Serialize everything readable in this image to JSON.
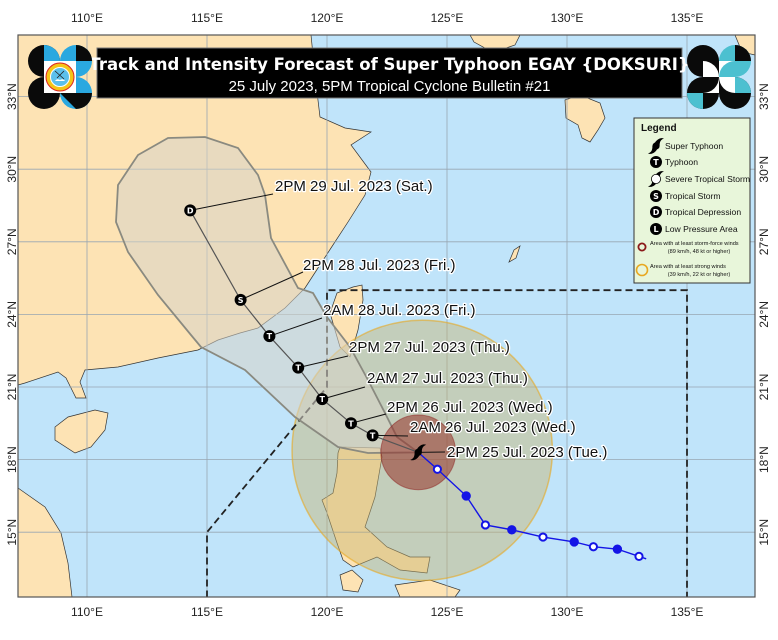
{
  "title": "Track and Intensity Forecast of Super Typhoon EGAY {DOKSURI}",
  "subtitle": "25 July 2023, 5PM Tropical Cyclone Bulletin #21",
  "axes": {
    "lon_labels": [
      "110°E",
      "115°E",
      "120°E",
      "125°E",
      "130°E",
      "135°E"
    ],
    "lat_labels": [
      "33°N",
      "30°N",
      "27°N",
      "24°N",
      "21°N",
      "18°N",
      "15°N"
    ]
  },
  "legend": {
    "title": "Legend",
    "items": [
      {
        "symbol": "super-typhoon",
        "label": "Super Typhoon"
      },
      {
        "symbol": "T",
        "label": "Typhoon"
      },
      {
        "symbol": "severe-tropical-storm",
        "label": "Severe Tropical Storm"
      },
      {
        "symbol": "S",
        "label": "Tropical Storm"
      },
      {
        "symbol": "D",
        "label": "Tropical Depression"
      },
      {
        "symbol": "L",
        "label": "Low Pressure Area"
      }
    ],
    "wind_areas": [
      {
        "line1": "Area with at least storm-force winds",
        "line2": "(89 km/h, 48 kt or higher)",
        "color": "#8b1a1a"
      },
      {
        "line1": "Area with at least strong winds",
        "line2": "(39 km/h, 22 kt or higher)",
        "color": "#e8a820"
      }
    ]
  },
  "forecast_track": [
    {
      "label": "2PM 25 Jul. 2023 (Tue.)",
      "lat": 18.3,
      "lon": 123.8,
      "category": "Super Typhoon",
      "symbol": "super-typhoon"
    },
    {
      "label": "2AM 26 Jul. 2023 (Wed.)",
      "lat": 19.0,
      "lon": 121.9,
      "category": "Typhoon",
      "symbol": "T"
    },
    {
      "label": "2PM 26 Jul. 2023 (Wed.)",
      "lat": 19.5,
      "lon": 121.0,
      "category": "Typhoon",
      "symbol": "T"
    },
    {
      "label": "2AM 27 Jul. 2023 (Thu.)",
      "lat": 20.5,
      "lon": 119.8,
      "category": "Typhoon",
      "symbol": "T"
    },
    {
      "label": "2PM 27 Jul. 2023 (Thu.)",
      "lat": 21.8,
      "lon": 118.8,
      "category": "Typhoon",
      "symbol": "T"
    },
    {
      "label": "2AM 28 Jul. 2023 (Fri.)",
      "lat": 23.1,
      "lon": 117.6,
      "category": "Typhoon",
      "symbol": "T"
    },
    {
      "label": "2PM 28 Jul. 2023 (Fri.)",
      "lat": 24.6,
      "lon": 116.4,
      "category": "Tropical Storm",
      "symbol": "S"
    },
    {
      "label": "2PM 29 Jul. 2023 (Sat.)",
      "lat": 28.3,
      "lon": 114.3,
      "category": "Tropical Depression",
      "symbol": "D"
    }
  ],
  "past_track": [
    {
      "lat": 17.6,
      "lon": 124.6,
      "marker": "open"
    },
    {
      "lat": 16.5,
      "lon": 125.8,
      "marker": "filled"
    },
    {
      "lat": 15.3,
      "lon": 126.6,
      "marker": "open"
    },
    {
      "lat": 15.1,
      "lon": 127.7,
      "marker": "filled"
    },
    {
      "lat": 14.8,
      "lon": 129.0,
      "marker": "open"
    },
    {
      "lat": 14.6,
      "lon": 130.3,
      "marker": "filled"
    },
    {
      "lat": 14.4,
      "lon": 131.1,
      "marker": "open"
    },
    {
      "lat": 14.3,
      "lon": 132.1,
      "marker": "filled"
    },
    {
      "lat": 14.0,
      "lon": 133.0,
      "marker": "open"
    },
    {
      "lat": 13.9,
      "lon": 133.3,
      "marker": "none"
    }
  ],
  "wind_radii": {
    "storm_force_deg": 1.55,
    "strong_deg": 5.4
  },
  "par_boundary": [
    [
      115,
      12.3
    ],
    [
      115,
      15
    ],
    [
      120,
      21
    ],
    [
      120,
      25
    ],
    [
      135,
      25
    ],
    [
      135,
      12.3
    ]
  ],
  "colors": {
    "sea": "#c0e4fa",
    "land": "#fde3b4",
    "grid": "#98a6b2",
    "past_track": "#1414e6",
    "forecast_track": "#555555",
    "cone": "#8a8a80",
    "storm_force_area": "#8b1a1a",
    "strong_wind_area": "#e8a820",
    "title_bg": "#000000",
    "legend_bg": "#e8f6da"
  }
}
